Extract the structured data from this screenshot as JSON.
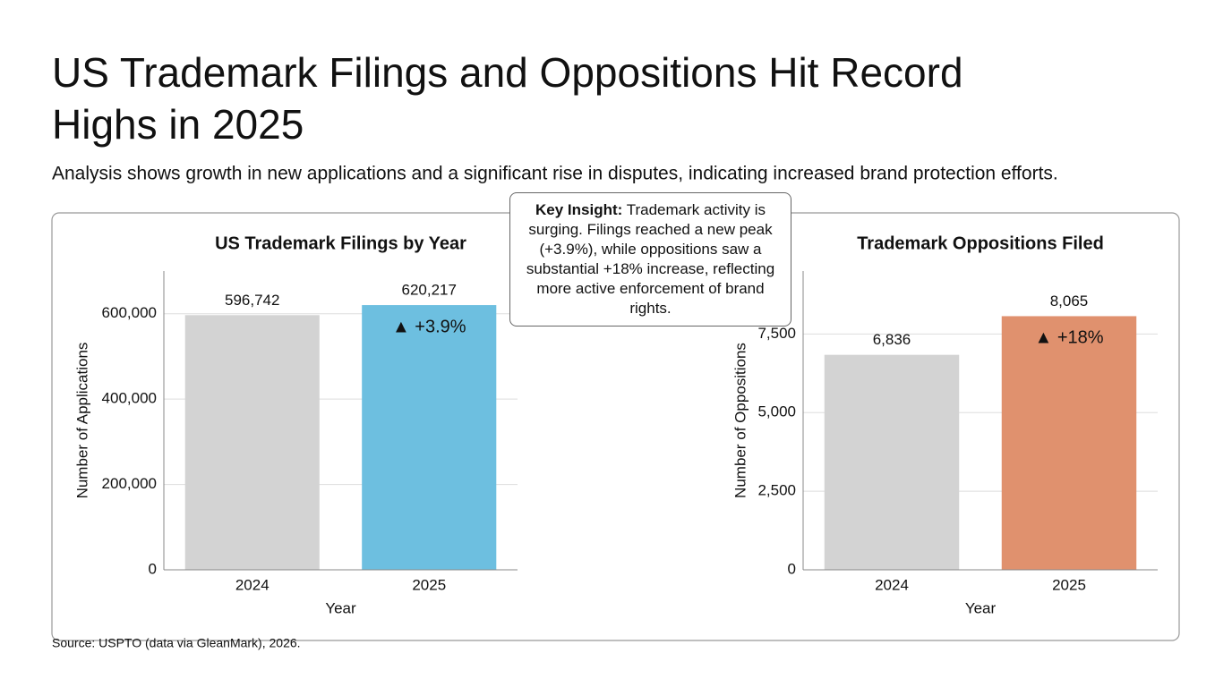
{
  "title": "US Trademark Filings and Oppositions Hit Record Highs in 2025",
  "subtitle": "Analysis shows growth in new applications and a significant rise in disputes, indicating increased brand protection efforts.",
  "insight": {
    "label": "Key Insight:",
    "text": "Trademark activity is surging. Filings reached a new peak (+3.9%), while oppositions saw a substantial +18% increase, reflecting more active enforcement of brand rights."
  },
  "source": "Source: USPTO (data via GleanMark), 2026.",
  "chart_data": [
    {
      "type": "bar",
      "title": "US Trademark Filings by Year",
      "x_label": "Year",
      "y_label": "Number of Applications",
      "categories": [
        "2024",
        "2025"
      ],
      "values": [
        596742,
        620217
      ],
      "value_labels": [
        "596,742",
        "620,217"
      ],
      "colors": [
        "#d3d3d3",
        "#6dbfe0"
      ],
      "annotation": "▲ +3.9%",
      "ylim": [
        0,
        700000
      ],
      "yticks": [
        0,
        {
          "value": 200000,
          "label": "200,000"
        },
        {
          "value": 400000,
          "label": "400,000"
        },
        {
          "value": 600000,
          "label": "600,000"
        }
      ],
      "grid": true
    },
    {
      "type": "bar",
      "title": "Trademark Oppositions Filed",
      "x_label": "Year",
      "y_label": "Number of Oppositions",
      "categories": [
        "2024",
        "2025"
      ],
      "values": [
        6836,
        8065
      ],
      "value_labels": [
        "6,836",
        "8,065"
      ],
      "colors": [
        "#d3d3d3",
        "#e0916e"
      ],
      "annotation": "▲ +18%",
      "ylim": [
        0,
        9500
      ],
      "yticks": [
        0,
        {
          "value": 2500,
          "label": "2,500"
        },
        {
          "value": 5000,
          "label": "5,000"
        },
        {
          "value": 7500,
          "label": "7,500"
        }
      ],
      "grid": true
    }
  ]
}
